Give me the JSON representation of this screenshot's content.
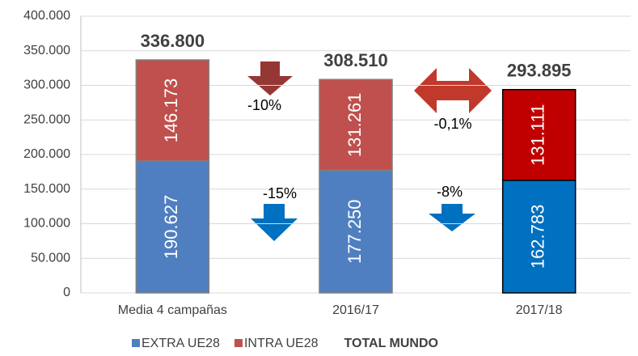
{
  "chart_data": {
    "type": "stacked_bar",
    "categories": [
      "Media 4 campañas",
      "2016/17",
      "2017/18"
    ],
    "series": [
      {
        "name": "EXTRA UE28",
        "color": "#4f7fc0",
        "colors": [
          "#4f7fc0",
          "#4f7fc0",
          "#0070c0"
        ],
        "values": [
          190627,
          177250,
          162783
        ],
        "value_labels": [
          "190.627",
          "177.250",
          "162.783"
        ]
      },
      {
        "name": "INTRA UE28",
        "color": "#c0504d",
        "colors": [
          "#c0504d",
          "#c0504d",
          "#c00000"
        ],
        "values": [
          146173,
          131261,
          131111
        ],
        "value_labels": [
          "146.173",
          "131.261",
          "131.111"
        ]
      }
    ],
    "totals": {
      "name": "TOTAL MUNDO",
      "values": [
        336800,
        308510,
        293895
      ],
      "value_labels": [
        "336.800",
        "308.510",
        "293.895"
      ]
    },
    "edgecolors": [
      "#7f7f7f",
      "#7f7f7f",
      "#000000"
    ],
    "annotations": [
      "-10%",
      "-15%",
      "-0,1%",
      "-8%"
    ],
    "ylim": [
      0,
      400000
    ],
    "yticks": [
      0,
      {
        "value": 50000,
        "label": "50.000"
      },
      {
        "value": 100000,
        "label": "100.000"
      },
      {
        "value": 150000,
        "label": "150.000"
      },
      {
        "value": 200000,
        "label": "200.000"
      },
      {
        "value": 250000,
        "label": "250.000"
      },
      {
        "value": 300000,
        "label": "300.000"
      },
      {
        "value": 350000,
        "label": "350.000"
      },
      {
        "value": 400000,
        "label": "400.000"
      }
    ],
    "grid": true
  }
}
